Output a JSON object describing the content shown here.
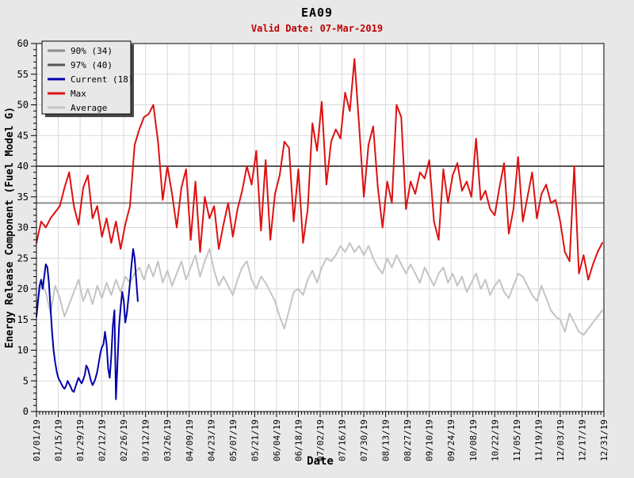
{
  "page": {
    "title": "EA09",
    "subtitle": "Valid Date: 07-Mar-2019"
  },
  "chart_data": {
    "type": "line",
    "title": "EA09",
    "subtitle": "Valid Date: 07-Mar-2019",
    "xlabel": "Date",
    "ylabel": "Energy Release Component (Fuel Model G)",
    "ylim": [
      0,
      60
    ],
    "y_ticks": [
      0,
      5,
      10,
      15,
      20,
      25,
      30,
      35,
      40,
      45,
      50,
      55,
      60
    ],
    "x_unit": "days since 01/01/19",
    "x_range_days": [
      0,
      364
    ],
    "x_tick_step_days": 14,
    "x_minor_tick_step_days": 2,
    "grid": true,
    "legend_position": "top-left",
    "x_tick_labels": [
      "01/01/19",
      "01/15/19",
      "01/29/19",
      "02/12/19",
      "02/26/19",
      "03/12/19",
      "03/26/19",
      "04/09/19",
      "04/23/19",
      "05/07/19",
      "05/21/19",
      "06/04/19",
      "06/18/19",
      "07/02/19",
      "07/16/19",
      "07/30/19",
      "08/13/19",
      "08/27/19",
      "09/10/19",
      "09/24/19",
      "10/08/19",
      "10/22/19",
      "11/05/19",
      "11/19/19",
      "12/03/19",
      "12/17/19",
      "12/31/19"
    ],
    "reference_lines": [
      {
        "label": "90% (34)",
        "value": 34,
        "color": "#8c8c8c"
      },
      {
        "label": "97% (40)",
        "value": 40,
        "color": "#555555"
      }
    ],
    "legend_entries": [
      "90% (34)",
      "97% (40)",
      "Current (18)",
      "Max",
      "Average"
    ],
    "colors": {
      "max": "#dd1111",
      "average": "#c4c4c4",
      "current": "#0000aa",
      "p90": "#8c8c8c",
      "p97": "#555555",
      "grid": "#d8d8d8",
      "plot_bg": "#ffffff",
      "page_bg": "#e8e8e8",
      "subtitle": "#c00000",
      "axis": "#000000"
    },
    "series": [
      {
        "name": "Max",
        "color_key": "max",
        "start_day": 0,
        "step_days": 3,
        "values": [
          27.5,
          31,
          30,
          31.5,
          32.5,
          33.5,
          36.5,
          39,
          33.5,
          30.5,
          36.5,
          38.5,
          31.5,
          33.5,
          28.5,
          31.5,
          27.5,
          31,
          26.5,
          30.5,
          33.5,
          43.5,
          46,
          48,
          48.5,
          50,
          44,
          34.5,
          40,
          35.5,
          30,
          36.5,
          39.5,
          28,
          37.5,
          26,
          35,
          31.5,
          33.5,
          26.5,
          30.5,
          34,
          28.5,
          33,
          36,
          40,
          37,
          42.5,
          29.5,
          41,
          28,
          35.5,
          38.5,
          44,
          43,
          31,
          39.5,
          27.5,
          33,
          47,
          42.5,
          50.5,
          37,
          44,
          46,
          44.5,
          52,
          49,
          57.5,
          46.5,
          35,
          43.5,
          46.5,
          36.5,
          30,
          37.5,
          34,
          50,
          48,
          33,
          37.5,
          35.5,
          39,
          38,
          41,
          31,
          28,
          39.5,
          34,
          38.5,
          40.5,
          36,
          37.5,
          35,
          44.5,
          34.5,
          36,
          33,
          32,
          36.5,
          40.5,
          29,
          33,
          41.5,
          31,
          35,
          39,
          31.5,
          35.5,
          37,
          34,
          34.5,
          31,
          26,
          24.5,
          40,
          22.5,
          25.5,
          21.5,
          24,
          26,
          27.5
        ]
      },
      {
        "name": "Average",
        "color_key": "average",
        "start_day": 0,
        "step_days": 3,
        "values": [
          17,
          21,
          19.5,
          16,
          20.5,
          18.5,
          15.5,
          17.5,
          19.5,
          21.5,
          18,
          20,
          17.5,
          20.5,
          18.5,
          21,
          19,
          21.5,
          19.5,
          22,
          21,
          22.5,
          23.5,
          21.5,
          24,
          22,
          24.5,
          21,
          23,
          20.5,
          22.5,
          24.5,
          21.5,
          23.5,
          25.5,
          22,
          24.5,
          26.5,
          23,
          20.5,
          22,
          20.5,
          19,
          21.5,
          23.5,
          24.5,
          21.5,
          20,
          22,
          21,
          19.5,
          18,
          15.5,
          13.5,
          16.5,
          19.5,
          20,
          19,
          21.5,
          23,
          21,
          23.5,
          25,
          24.5,
          25.5,
          27,
          26,
          27.5,
          26,
          27,
          25.5,
          27,
          25,
          23.5,
          22.5,
          25,
          23.5,
          25.5,
          24,
          22.5,
          24,
          22.5,
          21,
          23.5,
          22,
          20.5,
          22.5,
          23.5,
          21,
          22.5,
          20.5,
          22,
          19.5,
          21,
          22.5,
          20,
          21.5,
          19,
          20.5,
          21.5,
          19.5,
          18.5,
          20.5,
          22.5,
          22,
          20.5,
          19,
          18,
          20.5,
          18.5,
          16.5,
          15.5,
          15,
          13,
          16,
          14.5,
          13,
          12.5,
          13.5,
          14.5,
          15.5,
          16.5
        ]
      },
      {
        "name": "Current",
        "color_key": "current",
        "start_day": 0,
        "step_days": 1,
        "values": [
          15.5,
          18,
          20.5,
          21.5,
          20,
          22,
          24,
          23.5,
          21,
          17,
          13,
          10,
          8,
          6.5,
          5.5,
          5,
          4.5,
          4,
          3.7,
          4.2,
          5,
          4.5,
          4,
          3.4,
          3.2,
          4,
          4.8,
          5.5,
          5,
          4.6,
          5.2,
          6,
          7.5,
          7,
          6,
          5,
          4.3,
          4.8,
          5.5,
          6.5,
          8,
          9.5,
          10.5,
          11,
          13,
          11,
          7,
          5.5,
          9,
          14,
          16.5,
          2,
          8,
          14,
          17,
          19.5,
          18,
          14.5,
          16,
          18.5,
          21,
          24,
          26.5,
          25,
          21.5,
          18
        ]
      }
    ]
  }
}
